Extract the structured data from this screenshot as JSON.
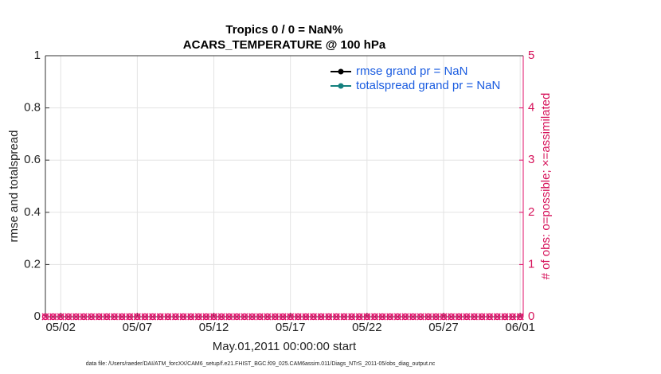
{
  "chart_data": {
    "type": "line",
    "title": "Tropics 0 / 0 = NaN%",
    "subtitle": "ACARS_TEMPERATURE @ 100 hPa",
    "x_label": "May.01,2011 00:00:00 start",
    "y_label": "rmse and totalspread",
    "y2_label": "# of obs: o=possible; ×=assimilated",
    "footnote": "data file: /Users/raeder/DAI/ATM_forcXX/CAM6_setup/f.e21.FHIST_BGC.f09_025.CAM6assim.011/Diags_NTrS_2011-05/obs_diag_output.nc",
    "x": [
      0,
      0.5,
      1,
      1.5,
      2,
      2.5,
      3,
      3.5,
      4,
      4.5,
      5,
      5.5,
      6,
      6.5,
      7,
      7.5,
      8,
      8.5,
      9,
      9.5,
      10,
      10.5,
      11,
      11.5,
      12,
      12.5,
      13,
      13.5,
      14,
      14.5,
      15,
      15.5,
      16,
      16.5,
      17,
      17.5,
      18,
      18.5,
      19,
      19.5,
      20,
      20.5,
      21,
      21.5,
      22,
      22.5,
      23,
      23.5,
      24,
      24.5,
      25,
      25.5,
      26,
      26.5,
      27,
      27.5,
      28,
      28.5,
      29,
      29.5,
      30,
      30.5,
      31
    ],
    "xlim": [
      0,
      31.2
    ],
    "xticks": [
      {
        "value": 1,
        "label": "05/02"
      },
      {
        "value": 6,
        "label": "05/07"
      },
      {
        "value": 11,
        "label": "05/12"
      },
      {
        "value": 16,
        "label": "05/17"
      },
      {
        "value": 21,
        "label": "05/22"
      },
      {
        "value": 26,
        "label": "05/27"
      },
      {
        "value": 31,
        "label": "06/01"
      }
    ],
    "ylim": [
      0,
      1
    ],
    "yticks": [
      0,
      0.2,
      0.4,
      0.6,
      0.8,
      1
    ],
    "y2lim": [
      0,
      5
    ],
    "y2ticks": [
      0,
      1,
      2,
      3,
      4,
      5
    ],
    "grid": true,
    "legend": "upper right",
    "series": [
      {
        "name": "rmse grand pr = NaN",
        "color": "#000000",
        "values": [
          null,
          null,
          null,
          null,
          null,
          null,
          null,
          null,
          null,
          null,
          null,
          null,
          null,
          null,
          null,
          null,
          null,
          null,
          null,
          null,
          null,
          null,
          null,
          null,
          null,
          null,
          null,
          null,
          null,
          null,
          null,
          null,
          null,
          null,
          null,
          null,
          null,
          null,
          null,
          null,
          null,
          null,
          null,
          null,
          null,
          null,
          null,
          null,
          null,
          null,
          null,
          null,
          null,
          null,
          null,
          null,
          null,
          null,
          null,
          null,
          null,
          null,
          null
        ]
      },
      {
        "name": "totalspread grand pr = NaN",
        "color": "#13807e",
        "values": [
          null,
          null,
          null,
          null,
          null,
          null,
          null,
          null,
          null,
          null,
          null,
          null,
          null,
          null,
          null,
          null,
          null,
          null,
          null,
          null,
          null,
          null,
          null,
          null,
          null,
          null,
          null,
          null,
          null,
          null,
          null,
          null,
          null,
          null,
          null,
          null,
          null,
          null,
          null,
          null,
          null,
          null,
          null,
          null,
          null,
          null,
          null,
          null,
          null,
          null,
          null,
          null,
          null,
          null,
          null,
          null,
          null,
          null,
          null,
          null,
          null,
          null,
          null
        ]
      },
      {
        "axis": "y2",
        "marker": "o",
        "color": "#e0106a",
        "values": [
          0,
          0,
          0,
          0,
          0,
          0,
          0,
          0,
          0,
          0,
          0,
          0,
          0,
          0,
          0,
          0,
          0,
          0,
          0,
          0,
          0,
          0,
          0,
          0,
          0,
          0,
          0,
          0,
          0,
          0,
          0,
          0,
          0,
          0,
          0,
          0,
          0,
          0,
          0,
          0,
          0,
          0,
          0,
          0,
          0,
          0,
          0,
          0,
          0,
          0,
          0,
          0,
          0,
          0,
          0,
          0,
          0,
          0,
          0,
          0,
          0,
          0,
          0
        ]
      },
      {
        "axis": "y2",
        "marker": "x",
        "color": "#e0106a",
        "values": [
          0,
          0,
          0,
          0,
          0,
          0,
          0,
          0,
          0,
          0,
          0,
          0,
          0,
          0,
          0,
          0,
          0,
          0,
          0,
          0,
          0,
          0,
          0,
          0,
          0,
          0,
          0,
          0,
          0,
          0,
          0,
          0,
          0,
          0,
          0,
          0,
          0,
          0,
          0,
          0,
          0,
          0,
          0,
          0,
          0,
          0,
          0,
          0,
          0,
          0,
          0,
          0,
          0,
          0,
          0,
          0,
          0,
          0,
          0,
          0,
          0,
          0,
          0
        ]
      }
    ]
  }
}
